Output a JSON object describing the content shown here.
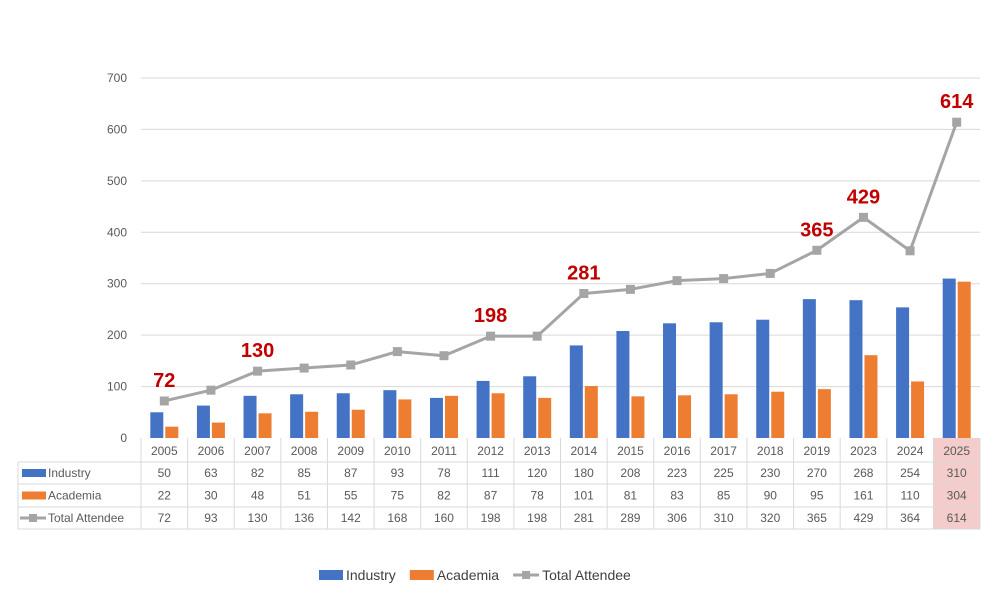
{
  "chart_data": {
    "type": "bar+line",
    "categories": [
      "2005",
      "2006",
      "2007",
      "2008",
      "2009",
      "2010",
      "2011",
      "2012",
      "2013",
      "2014",
      "2015",
      "2016",
      "2017",
      "2018",
      "2019",
      "2023",
      "2024",
      "2025"
    ],
    "series": [
      {
        "name": "Industry",
        "type": "bar",
        "color": "#4472c4",
        "values": [
          50,
          63,
          82,
          85,
          87,
          93,
          78,
          111,
          120,
          180,
          208,
          223,
          225,
          230,
          270,
          268,
          254,
          310
        ]
      },
      {
        "name": "Academia",
        "type": "bar",
        "color": "#ed7d31",
        "values": [
          22,
          30,
          48,
          51,
          55,
          75,
          82,
          87,
          78,
          101,
          81,
          83,
          85,
          90,
          95,
          161,
          110,
          304
        ]
      },
      {
        "name": "Total Attendee",
        "type": "line",
        "color": "#a5a5a5",
        "values": [
          72,
          93,
          130,
          136,
          142,
          168,
          160,
          198,
          198,
          281,
          289,
          306,
          310,
          320,
          365,
          429,
          364,
          614
        ]
      }
    ],
    "annotations": [
      {
        "category": "2005",
        "label": "72"
      },
      {
        "category": "2007",
        "label": "130"
      },
      {
        "category": "2012",
        "label": "198"
      },
      {
        "category": "2014",
        "label": "281"
      },
      {
        "category": "2019",
        "label": "365"
      },
      {
        "category": "2023",
        "label": "429"
      },
      {
        "category": "2025",
        "label": "614"
      }
    ],
    "annotation_color": "#c00000",
    "highlight_category": "2025",
    "highlight_color": "#f4cccc",
    "yticks": [
      0,
      100,
      200,
      300,
      400,
      500,
      600,
      700
    ],
    "ylim": [
      0,
      700
    ],
    "grid": true,
    "data_table": true,
    "legend_position": "bottom",
    "title": "",
    "xlabel": "",
    "ylabel": ""
  }
}
